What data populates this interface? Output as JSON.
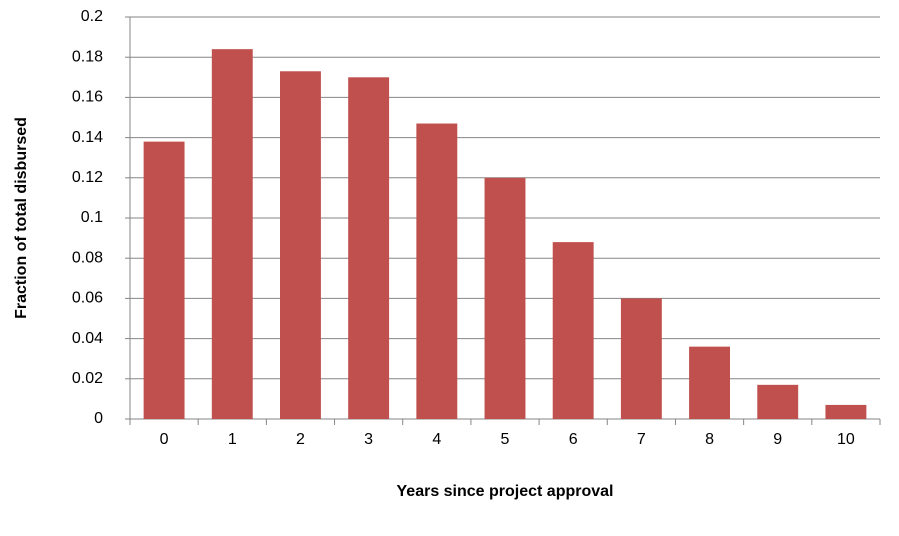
{
  "chart_data": {
    "type": "bar",
    "x_label": "Years since project approval",
    "y_label": "Fraction of total disbursed",
    "categories": [
      "0",
      "1",
      "2",
      "3",
      "4",
      "5",
      "6",
      "7",
      "8",
      "9",
      "10"
    ],
    "values": [
      0.138,
      0.184,
      0.173,
      0.17,
      0.147,
      0.12,
      0.088,
      0.06,
      0.036,
      0.017,
      0.007
    ],
    "color": "#c0504d",
    "ylim": [
      0,
      0.2
    ],
    "yticks": [
      0,
      0.02,
      0.04,
      0.06,
      0.08,
      0.1,
      0.12,
      0.14,
      0.16,
      0.18,
      0.2
    ],
    "grid": true
  }
}
